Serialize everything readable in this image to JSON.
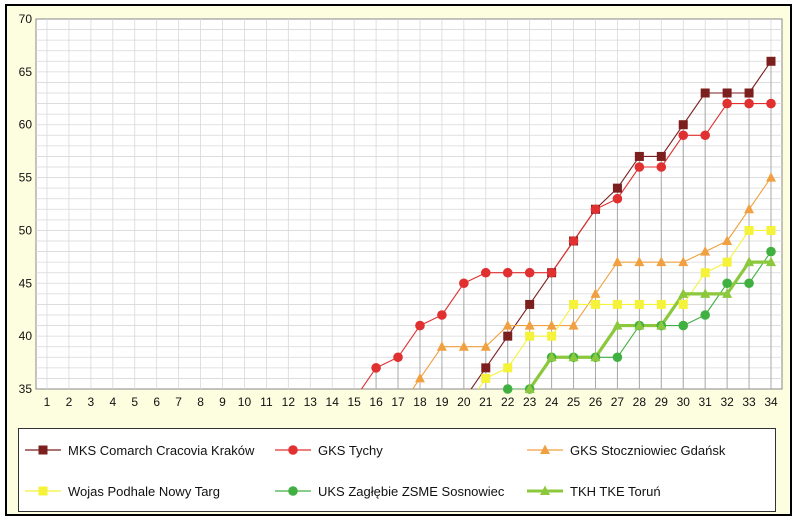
{
  "chart_data": {
    "type": "line",
    "x": [
      1,
      2,
      3,
      4,
      5,
      6,
      7,
      8,
      9,
      10,
      11,
      12,
      13,
      14,
      15,
      16,
      17,
      18,
      19,
      20,
      21,
      22,
      23,
      24,
      25,
      26,
      27,
      28,
      29,
      30,
      31,
      32,
      33,
      34
    ],
    "ylim": [
      35,
      70
    ],
    "yticks": [
      35,
      40,
      45,
      50,
      55,
      60,
      65,
      70
    ],
    "grid": true,
    "legend_position": "bottom",
    "series": [
      {
        "name": "MKS Comarch Cracovia Kraków",
        "color": "#7b1f1f",
        "marker": "square",
        "values": [
          null,
          null,
          null,
          null,
          null,
          null,
          null,
          null,
          null,
          null,
          null,
          null,
          null,
          null,
          null,
          null,
          null,
          null,
          null,
          null,
          37,
          40,
          43,
          46,
          49,
          52,
          54,
          57,
          57,
          60,
          63,
          63,
          63,
          66
        ]
      },
      {
        "name": "GKS Tychy",
        "color": "#e03030",
        "marker": "circle",
        "values": [
          null,
          null,
          null,
          null,
          null,
          null,
          null,
          null,
          null,
          null,
          null,
          null,
          null,
          null,
          null,
          37,
          38,
          41,
          42,
          45,
          46,
          46,
          46,
          46,
          49,
          52,
          53,
          56,
          56,
          59,
          59,
          62,
          62,
          62
        ]
      },
      {
        "name": "GKS Stoczniowiec Gdańsk",
        "color": "#f0a040",
        "marker": "triangle",
        "values": [
          null,
          null,
          null,
          null,
          null,
          null,
          null,
          null,
          null,
          null,
          null,
          null,
          null,
          null,
          null,
          null,
          null,
          36,
          39,
          39,
          39,
          41,
          41,
          41,
          41,
          44,
          47,
          47,
          47,
          47,
          48,
          49,
          52,
          55
        ]
      },
      {
        "name": "Wojas Podhale Nowy Targ",
        "color": "#f5f23a",
        "marker": "square",
        "values": [
          null,
          null,
          null,
          null,
          null,
          null,
          null,
          null,
          null,
          null,
          null,
          null,
          null,
          null,
          null,
          null,
          null,
          null,
          null,
          null,
          36,
          37,
          40,
          40,
          43,
          43,
          43,
          43,
          43,
          43,
          46,
          47,
          50,
          50
        ]
      },
      {
        "name": "UKS Zagłębie ZSME Sosnowiec",
        "color": "#40b040",
        "marker": "circle",
        "values": [
          null,
          null,
          null,
          null,
          null,
          null,
          null,
          null,
          null,
          null,
          null,
          null,
          null,
          null,
          null,
          null,
          null,
          null,
          null,
          null,
          null,
          35,
          35,
          38,
          38,
          38,
          38,
          41,
          41,
          41,
          42,
          45,
          45,
          48
        ]
      },
      {
        "name": "TKH TKE Toruń",
        "color": "#8cc83c",
        "marker": "triangle",
        "thick": true,
        "values": [
          null,
          null,
          null,
          null,
          null,
          null,
          null,
          null,
          null,
          null,
          null,
          null,
          null,
          null,
          null,
          null,
          null,
          null,
          null,
          null,
          null,
          null,
          35,
          38,
          38,
          38,
          41,
          41,
          41,
          44,
          44,
          44,
          47,
          47
        ]
      }
    ]
  }
}
